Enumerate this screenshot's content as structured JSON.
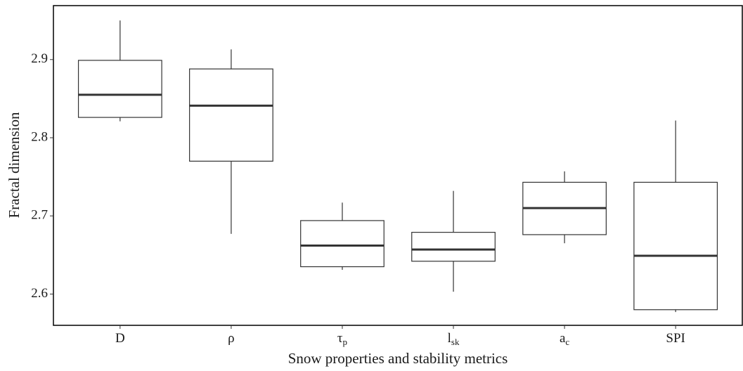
{
  "chart_data": {
    "type": "box",
    "x_label": "Snow properties and stability metrics",
    "y_label": "Fractal dimension",
    "categories": [
      "D",
      "ρ",
      "τ",
      "l",
      "a",
      "SPI"
    ],
    "category_subscripts": [
      null,
      null,
      "p",
      "sk",
      "c",
      null
    ],
    "boxes": [
      {
        "min": 2.821,
        "q1": 2.826,
        "median": 2.855,
        "q3": 2.899,
        "max": 2.95
      },
      {
        "min": 2.677,
        "q1": 2.77,
        "median": 2.841,
        "q3": 2.888,
        "max": 2.913
      },
      {
        "min": 2.631,
        "q1": 2.635,
        "median": 2.662,
        "q3": 2.694,
        "max": 2.717
      },
      {
        "min": 2.603,
        "q1": 2.642,
        "median": 2.657,
        "q3": 2.679,
        "max": 2.732
      },
      {
        "min": 2.665,
        "q1": 2.676,
        "median": 2.71,
        "q3": 2.743,
        "max": 2.757
      },
      {
        "min": 2.577,
        "q1": 2.58,
        "median": 2.649,
        "q3": 2.743,
        "max": 2.822
      }
    ],
    "color": "#333333",
    "ylim": [
      2.56,
      2.969
    ],
    "yticks": [
      2.6,
      2.7,
      2.8,
      2.9
    ],
    "grid": false
  }
}
